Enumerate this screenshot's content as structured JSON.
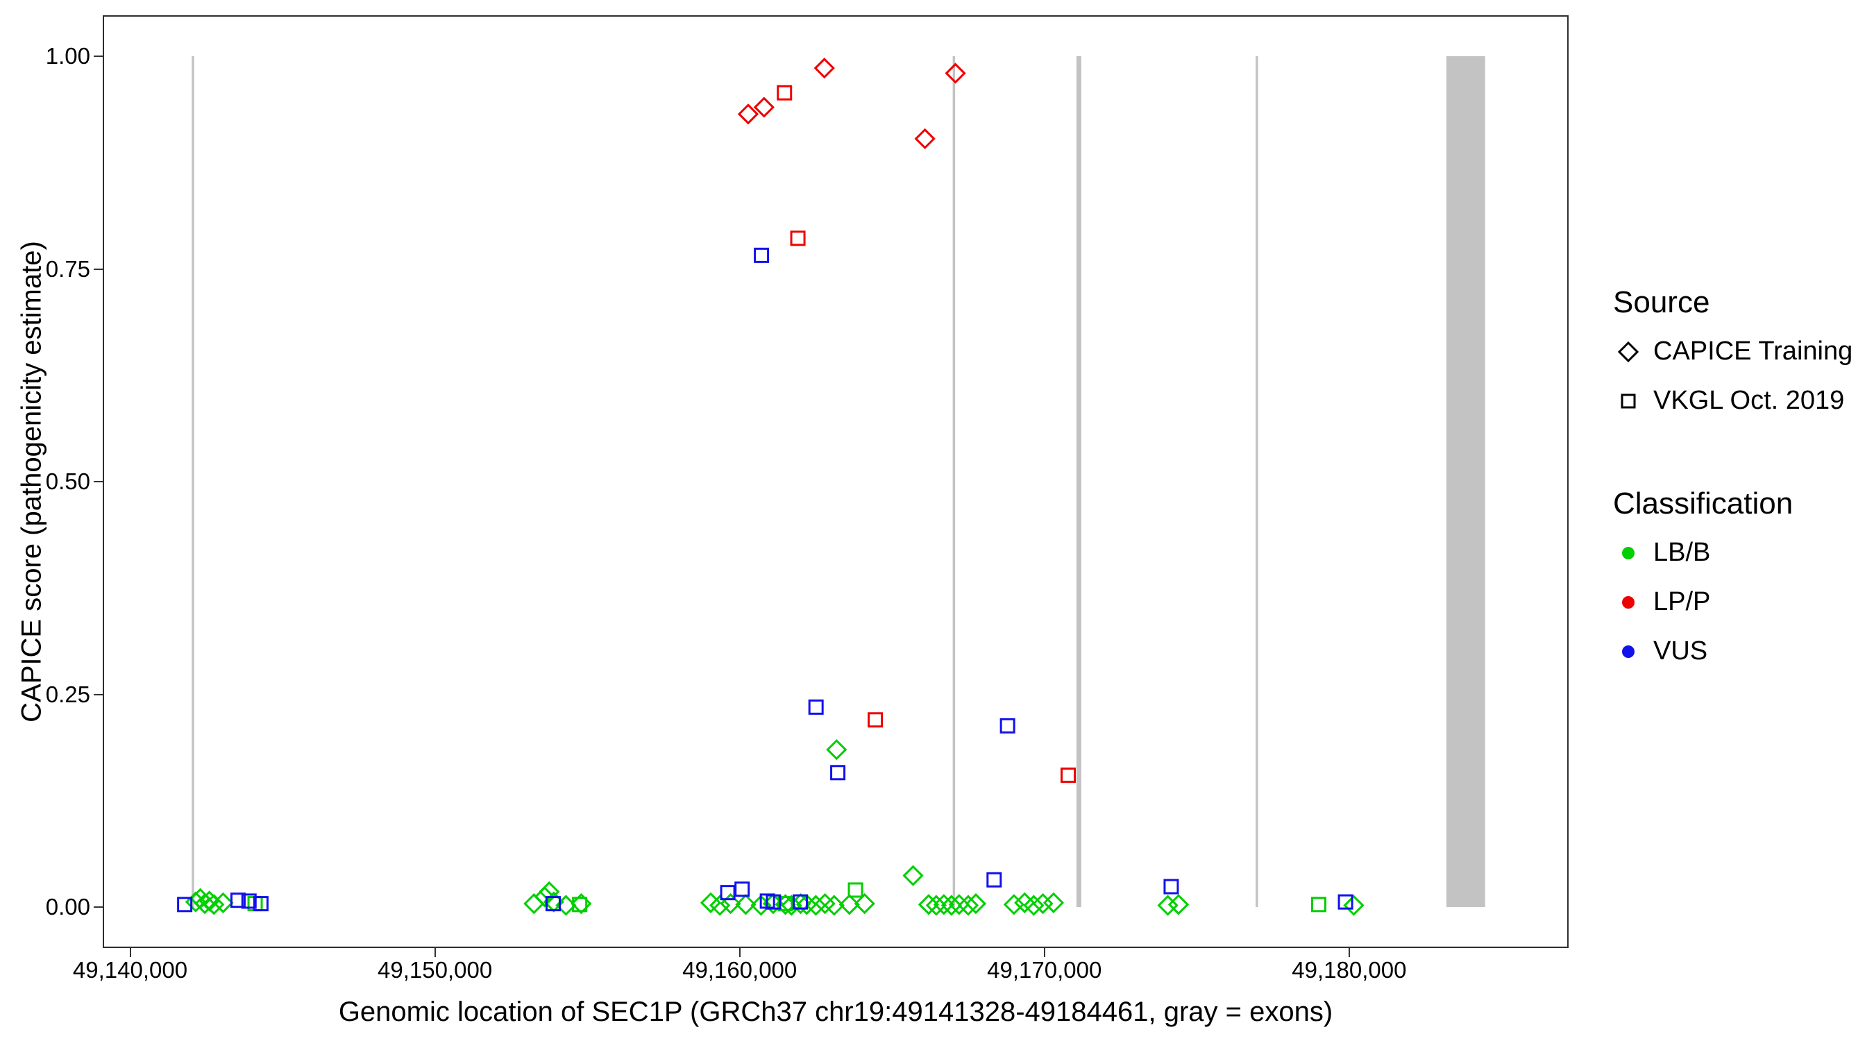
{
  "chart_data": {
    "type": "scatter",
    "title": "",
    "xlabel": "Genomic location of SEC1P (GRCh37 chr19:49141328-49184461, gray = exons)",
    "ylabel": "CAPICE score (pathogenicity estimate)",
    "x_domain": [
      49139100,
      49187200
    ],
    "y_domain": [
      0,
      1
    ],
    "grid": false,
    "x_ticks": [
      {
        "value": 49140000,
        "label": "49,140,000"
      },
      {
        "value": 49150000,
        "label": "49,150,000"
      },
      {
        "value": 49160000,
        "label": "49,160,000"
      },
      {
        "value": 49170000,
        "label": "49,170,000"
      },
      {
        "value": 49180000,
        "label": "49,180,000"
      }
    ],
    "y_ticks": [
      {
        "value": 0.0,
        "label": "0.00"
      },
      {
        "value": 0.25,
        "label": "0.25"
      },
      {
        "value": 0.5,
        "label": "0.50"
      },
      {
        "value": 0.75,
        "label": "0.75"
      },
      {
        "value": 1.0,
        "label": "1.00"
      }
    ],
    "exon_color": "#c3c3c3",
    "exons": [
      {
        "start": 49142020,
        "end": 49142100
      },
      {
        "start": 49166990,
        "end": 49167070
      },
      {
        "start": 49171050,
        "end": 49171210
      },
      {
        "start": 49176930,
        "end": 49177010
      },
      {
        "start": 49183190,
        "end": 49184461
      }
    ],
    "series": [
      {
        "name": "LB/B - CAPICE Training",
        "classification": "LB/B",
        "source": "CAPICE Training",
        "shape": "diamond",
        "color": "#00cf00",
        "points": [
          [
            49142150,
            0.006
          ],
          [
            49142300,
            0.01
          ],
          [
            49142450,
            0.004
          ],
          [
            49142600,
            0.007
          ],
          [
            49142750,
            0.003
          ],
          [
            49143050,
            0.005
          ],
          [
            49153250,
            0.004
          ],
          [
            49153600,
            0.012
          ],
          [
            49153750,
            0.018
          ],
          [
            49153900,
            0.006
          ],
          [
            49154300,
            0.002
          ],
          [
            49154800,
            0.004
          ],
          [
            49159050,
            0.005
          ],
          [
            49159350,
            0.002
          ],
          [
            49159700,
            0.004
          ],
          [
            49160200,
            0.003
          ],
          [
            49160700,
            0.002
          ],
          [
            49161100,
            0.004
          ],
          [
            49161500,
            0.003
          ],
          [
            49161700,
            0.002
          ],
          [
            49162000,
            0.004
          ],
          [
            49162200,
            0.003
          ],
          [
            49162500,
            0.002
          ],
          [
            49162800,
            0.004
          ],
          [
            49163100,
            0.002
          ],
          [
            49163600,
            0.003
          ],
          [
            49164100,
            0.004
          ],
          [
            49163180,
            0.185
          ],
          [
            49165690,
            0.037
          ],
          [
            49166200,
            0.003
          ],
          [
            49166450,
            0.002
          ],
          [
            49166700,
            0.003
          ],
          [
            49166950,
            0.002
          ],
          [
            49167200,
            0.003
          ],
          [
            49167500,
            0.002
          ],
          [
            49167750,
            0.004
          ],
          [
            49169000,
            0.003
          ],
          [
            49169350,
            0.005
          ],
          [
            49169650,
            0.002
          ],
          [
            49169950,
            0.004
          ],
          [
            49170300,
            0.005
          ],
          [
            49174050,
            0.002
          ],
          [
            49174400,
            0.003
          ],
          [
            49180150,
            0.002
          ]
        ]
      },
      {
        "name": "LB/B - VKGL Oct. 2019",
        "classification": "LB/B",
        "source": "VKGL Oct. 2019",
        "shape": "square",
        "color": "#00cf00",
        "points": [
          [
            49144100,
            0.004
          ],
          [
            49154750,
            0.003
          ],
          [
            49161500,
            0.004
          ],
          [
            49163800,
            0.02
          ],
          [
            49179000,
            0.003
          ]
        ]
      },
      {
        "name": "LP/P - CAPICE Training",
        "classification": "LP/P",
        "source": "CAPICE Training",
        "shape": "diamond",
        "color": "#ee0000",
        "points": [
          [
            49160280,
            0.932
          ],
          [
            49160800,
            0.94
          ],
          [
            49162780,
            0.986
          ],
          [
            49166080,
            0.903
          ],
          [
            49167080,
            0.98
          ]
        ]
      },
      {
        "name": "LP/P - VKGL Oct. 2019",
        "classification": "LP/P",
        "source": "VKGL Oct. 2019",
        "shape": "square",
        "color": "#ee0000",
        "points": [
          [
            49161470,
            0.957
          ],
          [
            49161910,
            0.786
          ],
          [
            49164450,
            0.22
          ],
          [
            49170780,
            0.155
          ]
        ]
      },
      {
        "name": "VUS - VKGL Oct. 2019",
        "classification": "VUS",
        "source": "VKGL Oct. 2019",
        "shape": "square",
        "color": "#1111ee",
        "points": [
          [
            49160715,
            0.766
          ],
          [
            49162505,
            0.235
          ],
          [
            49163220,
            0.158
          ],
          [
            49168790,
            0.213
          ],
          [
            49168350,
            0.032
          ],
          [
            49174160,
            0.024
          ],
          [
            49141790,
            0.003
          ],
          [
            49143540,
            0.008
          ],
          [
            49143900,
            0.007
          ],
          [
            49144290,
            0.004
          ],
          [
            49153880,
            0.004
          ],
          [
            49159610,
            0.017
          ],
          [
            49160080,
            0.021
          ],
          [
            49160910,
            0.007
          ],
          [
            49161110,
            0.006
          ],
          [
            49161990,
            0.006
          ],
          [
            49179880,
            0.006
          ]
        ]
      }
    ]
  },
  "legend": {
    "source": {
      "title": "Source",
      "items": [
        {
          "label": "CAPICE Training",
          "shape": "diamond"
        },
        {
          "label": "VKGL Oct. 2019",
          "shape": "square"
        }
      ]
    },
    "classification": {
      "title": "Classification",
      "items": [
        {
          "label": "LB/B",
          "color": "#00cf00"
        },
        {
          "label": "LP/P",
          "color": "#ee0000"
        },
        {
          "label": "VUS",
          "color": "#1111ee"
        }
      ]
    }
  }
}
